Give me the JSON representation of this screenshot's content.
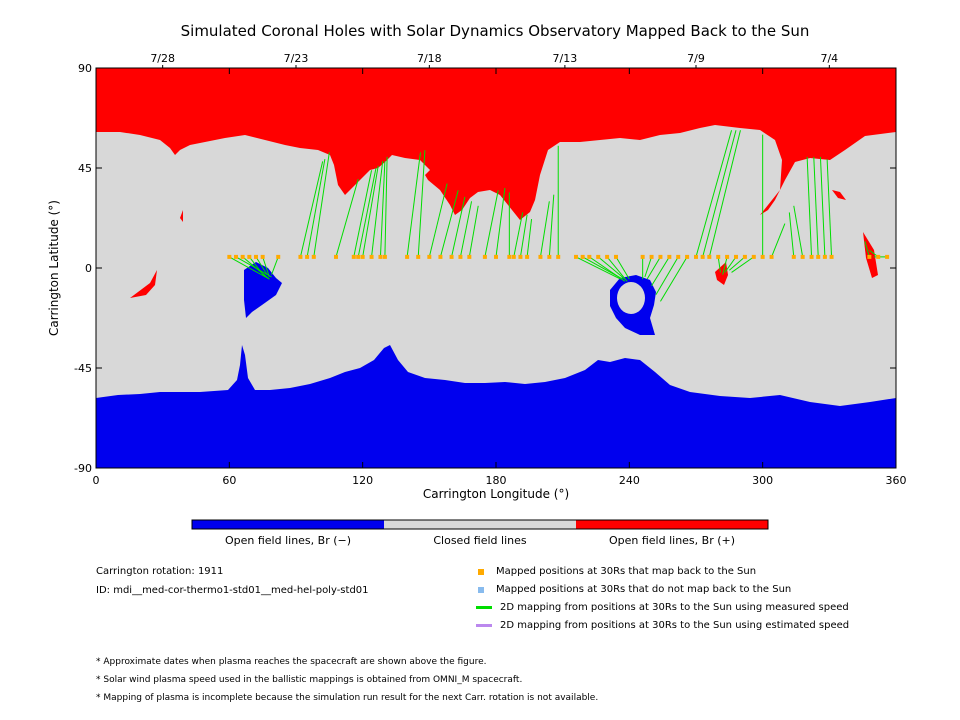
{
  "chart_data": {
    "type": "map",
    "title": "Simulated Coronal Holes with Solar Dynamics Observatory Mapped Back to the Sun",
    "xlabel": "Carrington Longitude (°)",
    "ylabel": "Carrington Latitude (°)",
    "xlim": [
      0,
      360
    ],
    "ylim": [
      -90,
      90
    ],
    "x_ticks": [
      0,
      60,
      120,
      180,
      240,
      300,
      360
    ],
    "y_ticks": [
      -90,
      -45,
      0,
      45,
      90
    ],
    "top_date_labels": [
      {
        "label": "7/28",
        "lon": 30
      },
      {
        "label": "7/23",
        "lon": 90
      },
      {
        "label": "7/18",
        "lon": 150
      },
      {
        "label": "7/13",
        "lon": 211
      },
      {
        "label": "7/9",
        "lon": 270
      },
      {
        "label": "7/4",
        "lon": 330
      }
    ],
    "regions": {
      "open_positive_color": "#ff0000",
      "closed_color": "#d8d8d8",
      "open_negative_color": "#0000ee"
    },
    "mapped_points": [
      {
        "lon": 60,
        "lat": 5,
        "foot_lon": 78,
        "foot_lat": -5
      },
      {
        "lon": 63,
        "lat": 5,
        "foot_lon": 79,
        "foot_lat": -4
      },
      {
        "lon": 66,
        "lat": 5,
        "foot_lon": 78,
        "foot_lat": -5
      },
      {
        "lon": 69,
        "lat": 5,
        "foot_lon": 76,
        "foot_lat": -4
      },
      {
        "lon": 72,
        "lat": 5,
        "foot_lon": 77,
        "foot_lat": -3
      },
      {
        "lon": 75,
        "lat": 5,
        "foot_lon": 78,
        "foot_lat": -4
      },
      {
        "lon": 82,
        "lat": 5,
        "foot_lon": 79,
        "foot_lat": -3
      },
      {
        "lon": 92,
        "lat": 5,
        "foot_lon": 102,
        "foot_lat": 48
      },
      {
        "lon": 95,
        "lat": 5,
        "foot_lon": 103,
        "foot_lat": 49
      },
      {
        "lon": 98,
        "lat": 5,
        "foot_lon": 105,
        "foot_lat": 52
      },
      {
        "lon": 108,
        "lat": 5,
        "foot_lon": 118,
        "foot_lat": 40
      },
      {
        "lon": 116,
        "lat": 5,
        "foot_lon": 124,
        "foot_lat": 44
      },
      {
        "lon": 118,
        "lat": 5,
        "foot_lon": 126,
        "foot_lat": 45
      },
      {
        "lon": 120,
        "lat": 5,
        "foot_lon": 127,
        "foot_lat": 46
      },
      {
        "lon": 124,
        "lat": 5,
        "foot_lon": 129,
        "foot_lat": 48
      },
      {
        "lon": 128,
        "lat": 5,
        "foot_lon": 130,
        "foot_lat": 48
      },
      {
        "lon": 130,
        "lat": 5,
        "foot_lon": 131,
        "foot_lat": 50
      },
      {
        "lon": 140,
        "lat": 5,
        "foot_lon": 146,
        "foot_lat": 52
      },
      {
        "lon": 145,
        "lat": 5,
        "foot_lon": 148,
        "foot_lat": 53
      },
      {
        "lon": 150,
        "lat": 5,
        "foot_lon": 158,
        "foot_lat": 38
      },
      {
        "lon": 155,
        "lat": 5,
        "foot_lon": 163,
        "foot_lat": 35
      },
      {
        "lon": 160,
        "lat": 5,
        "foot_lon": 166,
        "foot_lat": 32
      },
      {
        "lon": 164,
        "lat": 5,
        "foot_lon": 169,
        "foot_lat": 30
      },
      {
        "lon": 168,
        "lat": 5,
        "foot_lon": 172,
        "foot_lat": 28
      },
      {
        "lon": 175,
        "lat": 5,
        "foot_lon": 181,
        "foot_lat": 35
      },
      {
        "lon": 180,
        "lat": 5,
        "foot_lon": 184,
        "foot_lat": 36
      },
      {
        "lon": 186,
        "lat": 5,
        "foot_lon": 186,
        "foot_lat": 34
      },
      {
        "lon": 188,
        "lat": 5,
        "foot_lon": 192,
        "foot_lat": 25
      },
      {
        "lon": 191,
        "lat": 5,
        "foot_lon": 194,
        "foot_lat": 24
      },
      {
        "lon": 194,
        "lat": 5,
        "foot_lon": 196,
        "foot_lat": 22
      },
      {
        "lon": 200,
        "lat": 5,
        "foot_lon": 204,
        "foot_lat": 30
      },
      {
        "lon": 204,
        "lat": 5,
        "foot_lon": 206,
        "foot_lat": 33
      },
      {
        "lon": 208,
        "lat": 5,
        "foot_lon": 208,
        "foot_lat": 55
      },
      {
        "lon": 216,
        "lat": 5,
        "foot_lon": 236,
        "foot_lat": -5
      },
      {
        "lon": 219,
        "lat": 5,
        "foot_lon": 237,
        "foot_lat": -5
      },
      {
        "lon": 222,
        "lat": 5,
        "foot_lon": 238,
        "foot_lat": -6
      },
      {
        "lon": 226,
        "lat": 5,
        "foot_lon": 238,
        "foot_lat": -5
      },
      {
        "lon": 230,
        "lat": 5,
        "foot_lon": 239,
        "foot_lat": -6
      },
      {
        "lon": 234,
        "lat": 5,
        "foot_lon": 240,
        "foot_lat": -5
      },
      {
        "lon": 246,
        "lat": 5,
        "foot_lon": 246,
        "foot_lat": -5
      },
      {
        "lon": 250,
        "lat": 5,
        "foot_lon": 247,
        "foot_lat": -4
      },
      {
        "lon": 254,
        "lat": 5,
        "foot_lon": 248,
        "foot_lat": -5
      },
      {
        "lon": 258,
        "lat": 5,
        "foot_lon": 250,
        "foot_lat": -8
      },
      {
        "lon": 262,
        "lat": 5,
        "foot_lon": 252,
        "foot_lat": -12
      },
      {
        "lon": 266,
        "lat": 5,
        "foot_lon": 254,
        "foot_lat": -15
      },
      {
        "lon": 270,
        "lat": 5,
        "foot_lon": 286,
        "foot_lat": 62
      },
      {
        "lon": 273,
        "lat": 5,
        "foot_lon": 288,
        "foot_lat": 62
      },
      {
        "lon": 276,
        "lat": 5,
        "foot_lon": 290,
        "foot_lat": 62
      },
      {
        "lon": 280,
        "lat": 5,
        "foot_lon": 281,
        "foot_lat": -2
      },
      {
        "lon": 284,
        "lat": 5,
        "foot_lon": 282,
        "foot_lat": -3
      },
      {
        "lon": 288,
        "lat": 5,
        "foot_lon": 283,
        "foot_lat": -2
      },
      {
        "lon": 292,
        "lat": 5,
        "foot_lon": 285,
        "foot_lat": -1
      },
      {
        "lon": 296,
        "lat": 5,
        "foot_lon": 286,
        "foot_lat": -2
      },
      {
        "lon": 300,
        "lat": 5,
        "foot_lon": 300,
        "foot_lat": 60
      },
      {
        "lon": 304,
        "lat": 5,
        "foot_lon": 310,
        "foot_lat": 20
      },
      {
        "lon": 314,
        "lat": 5,
        "foot_lon": 312,
        "foot_lat": 25
      },
      {
        "lon": 318,
        "lat": 5,
        "foot_lon": 314,
        "foot_lat": 28
      },
      {
        "lon": 322,
        "lat": 5,
        "foot_lon": 320,
        "foot_lat": 50
      },
      {
        "lon": 325,
        "lat": 5,
        "foot_lon": 323,
        "foot_lat": 50
      },
      {
        "lon": 328,
        "lat": 5,
        "foot_lon": 326,
        "foot_lat": 50
      },
      {
        "lon": 331,
        "lat": 5,
        "foot_lon": 329,
        "foot_lat": 49
      },
      {
        "lon": 348,
        "lat": 5,
        "foot_lon": 346,
        "foot_lat": 12
      },
      {
        "lon": 352,
        "lat": 5,
        "foot_lon": 348,
        "foot_lat": 8
      },
      {
        "lon": 356,
        "lat": 5,
        "foot_lon": 350,
        "foot_lat": 5
      }
    ]
  },
  "colorbar": {
    "segments": [
      {
        "label": "Open field lines, Br (−)",
        "color": "#0000ee"
      },
      {
        "label": "Closed field lines",
        "color": "#d8d8d8"
      },
      {
        "label": "Open field lines, Br (+)",
        "color": "#ff0000"
      }
    ]
  },
  "info": {
    "rotation": "Carrington rotation: 1911",
    "id": "ID: mdi__med-cor-thermo1-std01__med-hel-poly-std01"
  },
  "legend": {
    "items": [
      {
        "label": "Mapped positions at 30Rs that map back to the Sun",
        "color": "#ffaa00",
        "kind": "square"
      },
      {
        "label": "Mapped positions at 30Rs that do not map back to the Sun",
        "color": "#88bbee",
        "kind": "square"
      },
      {
        "label": "2D mapping from positions at 30Rs to the Sun using measured speed",
        "color": "#00dd00",
        "kind": "line"
      },
      {
        "label": "2D mapping from positions at 30Rs to the Sun using estimated speed",
        "color": "#bb88ee",
        "kind": "line"
      }
    ]
  },
  "notes": [
    "* Approximate dates when plasma reaches the spacecraft are shown above the figure.",
    "* Solar wind plasma speed used in the ballistic mappings is obtained from OMNI_M spacecraft.",
    "* Mapping of plasma is incomplete because the simulation run result for the next Carr. rotation is not available."
  ]
}
